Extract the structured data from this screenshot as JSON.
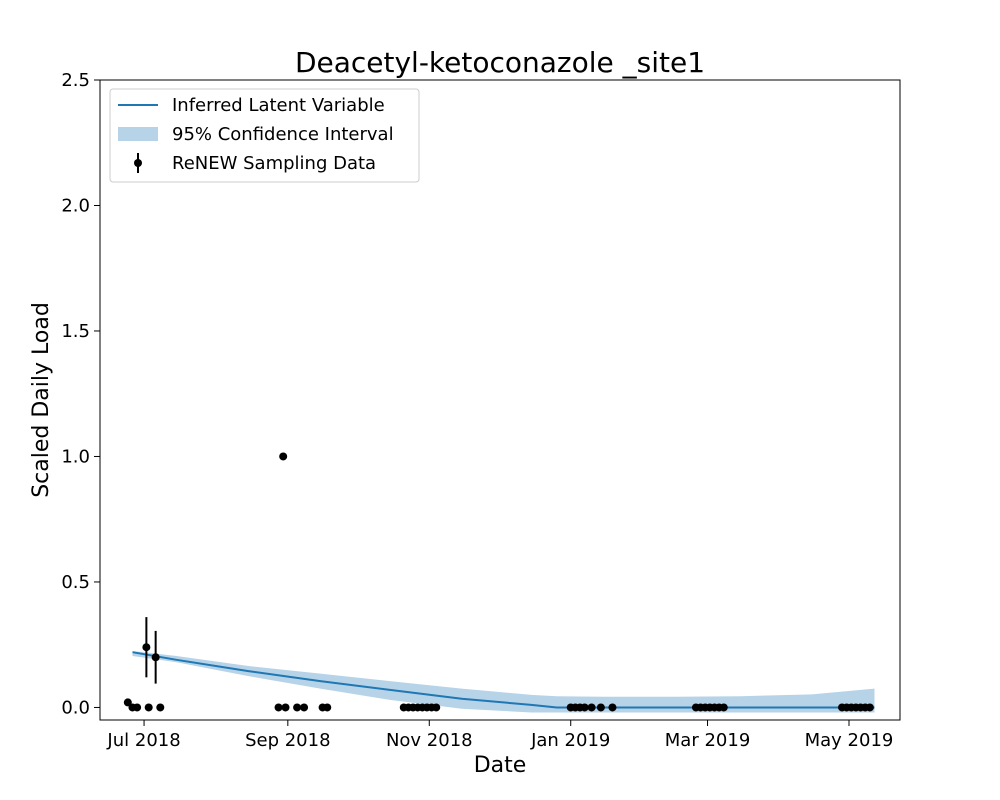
{
  "chart_data": {
    "type": "line",
    "title": "Deacetyl-ketoconazole _site1",
    "xlabel": "Date",
    "ylabel": "Scaled Daily Load",
    "xlim": [
      "2018-06-12",
      "2019-05-23"
    ],
    "ylim": [
      -0.05,
      2.5
    ],
    "x_ticks": [
      "2018-07-01",
      "2018-09-01",
      "2018-11-01",
      "2019-01-01",
      "2019-03-01",
      "2019-05-01"
    ],
    "x_tick_labels": [
      "Jul 2018",
      "Sep 2018",
      "Nov 2018",
      "Jan 2019",
      "Mar 2019",
      "May 2019"
    ],
    "y_ticks": [
      0.0,
      0.5,
      1.0,
      1.5,
      2.0,
      2.5
    ],
    "y_tick_labels": [
      "0.0",
      "0.5",
      "1.0",
      "1.5",
      "2.0",
      "2.5"
    ],
    "grid": false,
    "legend_position": "top-left",
    "legend": [
      "Inferred Latent Variable",
      "95% Confidence Interval",
      "ReNEW Sampling Data"
    ],
    "colors": {
      "line": "#1f77b4",
      "band": "#b7d3e8",
      "points": "#000000"
    },
    "series": [
      {
        "name": "Inferred Latent Variable",
        "kind": "line",
        "x": [
          "2018-06-26",
          "2018-07-15",
          "2018-08-15",
          "2018-09-15",
          "2018-10-15",
          "2018-11-15",
          "2018-12-15",
          "2018-12-26",
          "2019-01-15",
          "2019-02-15",
          "2019-03-15",
          "2019-04-15",
          "2019-05-12"
        ],
        "y": [
          0.22,
          0.19,
          0.145,
          0.105,
          0.07,
          0.035,
          0.01,
          0.0,
          0.0,
          0.0,
          0.0,
          0.0,
          0.0
        ]
      },
      {
        "name": "95% Confidence Interval",
        "kind": "band",
        "x": [
          "2018-06-26",
          "2018-07-15",
          "2018-08-15",
          "2018-09-15",
          "2018-10-15",
          "2018-11-15",
          "2018-12-15",
          "2018-12-26",
          "2019-01-15",
          "2019-02-15",
          "2019-03-15",
          "2019-04-15",
          "2019-05-12"
        ],
        "lower": [
          0.205,
          0.18,
          0.125,
          0.075,
          0.03,
          -0.005,
          -0.02,
          -0.02,
          -0.02,
          -0.02,
          -0.02,
          -0.02,
          -0.02
        ],
        "upper": [
          0.225,
          0.205,
          0.165,
          0.135,
          0.105,
          0.075,
          0.05,
          0.045,
          0.043,
          0.043,
          0.045,
          0.052,
          0.075
        ]
      },
      {
        "name": "ReNEW Sampling Data",
        "kind": "scatter",
        "points": [
          {
            "x": "2018-06-24",
            "y": 0.02
          },
          {
            "x": "2018-06-26",
            "y": 0.0
          },
          {
            "x": "2018-06-28",
            "y": 0.0
          },
          {
            "x": "2018-07-03",
            "y": 0.0
          },
          {
            "x": "2018-07-02",
            "y": 0.24,
            "err": 0.12
          },
          {
            "x": "2018-07-06",
            "y": 0.2,
            "err": 0.105
          },
          {
            "x": "2018-07-08",
            "y": 0.0
          },
          {
            "x": "2018-08-28",
            "y": 0.0
          },
          {
            "x": "2018-08-31",
            "y": 0.0
          },
          {
            "x": "2018-08-30",
            "y": 1.0
          },
          {
            "x": "2018-09-05",
            "y": 0.0
          },
          {
            "x": "2018-09-08",
            "y": 0.0
          },
          {
            "x": "2018-09-16",
            "y": 0.0
          },
          {
            "x": "2018-09-18",
            "y": 0.0
          },
          {
            "x": "2018-10-21",
            "y": 0.0
          },
          {
            "x": "2018-10-23",
            "y": 0.0
          },
          {
            "x": "2018-10-25",
            "y": 0.0
          },
          {
            "x": "2018-10-27",
            "y": 0.0
          },
          {
            "x": "2018-10-29",
            "y": 0.0
          },
          {
            "x": "2018-10-31",
            "y": 0.0
          },
          {
            "x": "2018-11-02",
            "y": 0.0
          },
          {
            "x": "2018-11-04",
            "y": 0.0
          },
          {
            "x": "2019-01-01",
            "y": 0.0
          },
          {
            "x": "2019-01-03",
            "y": 0.0
          },
          {
            "x": "2019-01-05",
            "y": 0.0
          },
          {
            "x": "2019-01-07",
            "y": 0.0
          },
          {
            "x": "2019-01-10",
            "y": 0.0
          },
          {
            "x": "2019-01-14",
            "y": 0.0
          },
          {
            "x": "2019-01-19",
            "y": 0.0
          },
          {
            "x": "2019-02-24",
            "y": 0.0
          },
          {
            "x": "2019-02-26",
            "y": 0.0
          },
          {
            "x": "2019-02-28",
            "y": 0.0
          },
          {
            "x": "2019-03-02",
            "y": 0.0
          },
          {
            "x": "2019-03-04",
            "y": 0.0
          },
          {
            "x": "2019-03-06",
            "y": 0.0
          },
          {
            "x": "2019-03-08",
            "y": 0.0
          },
          {
            "x": "2019-04-28",
            "y": 0.0
          },
          {
            "x": "2019-04-30",
            "y": 0.0
          },
          {
            "x": "2019-05-02",
            "y": 0.0
          },
          {
            "x": "2019-05-04",
            "y": 0.0
          },
          {
            "x": "2019-05-06",
            "y": 0.0
          },
          {
            "x": "2019-05-08",
            "y": 0.0
          },
          {
            "x": "2019-05-10",
            "y": 0.0
          }
        ]
      }
    ]
  }
}
